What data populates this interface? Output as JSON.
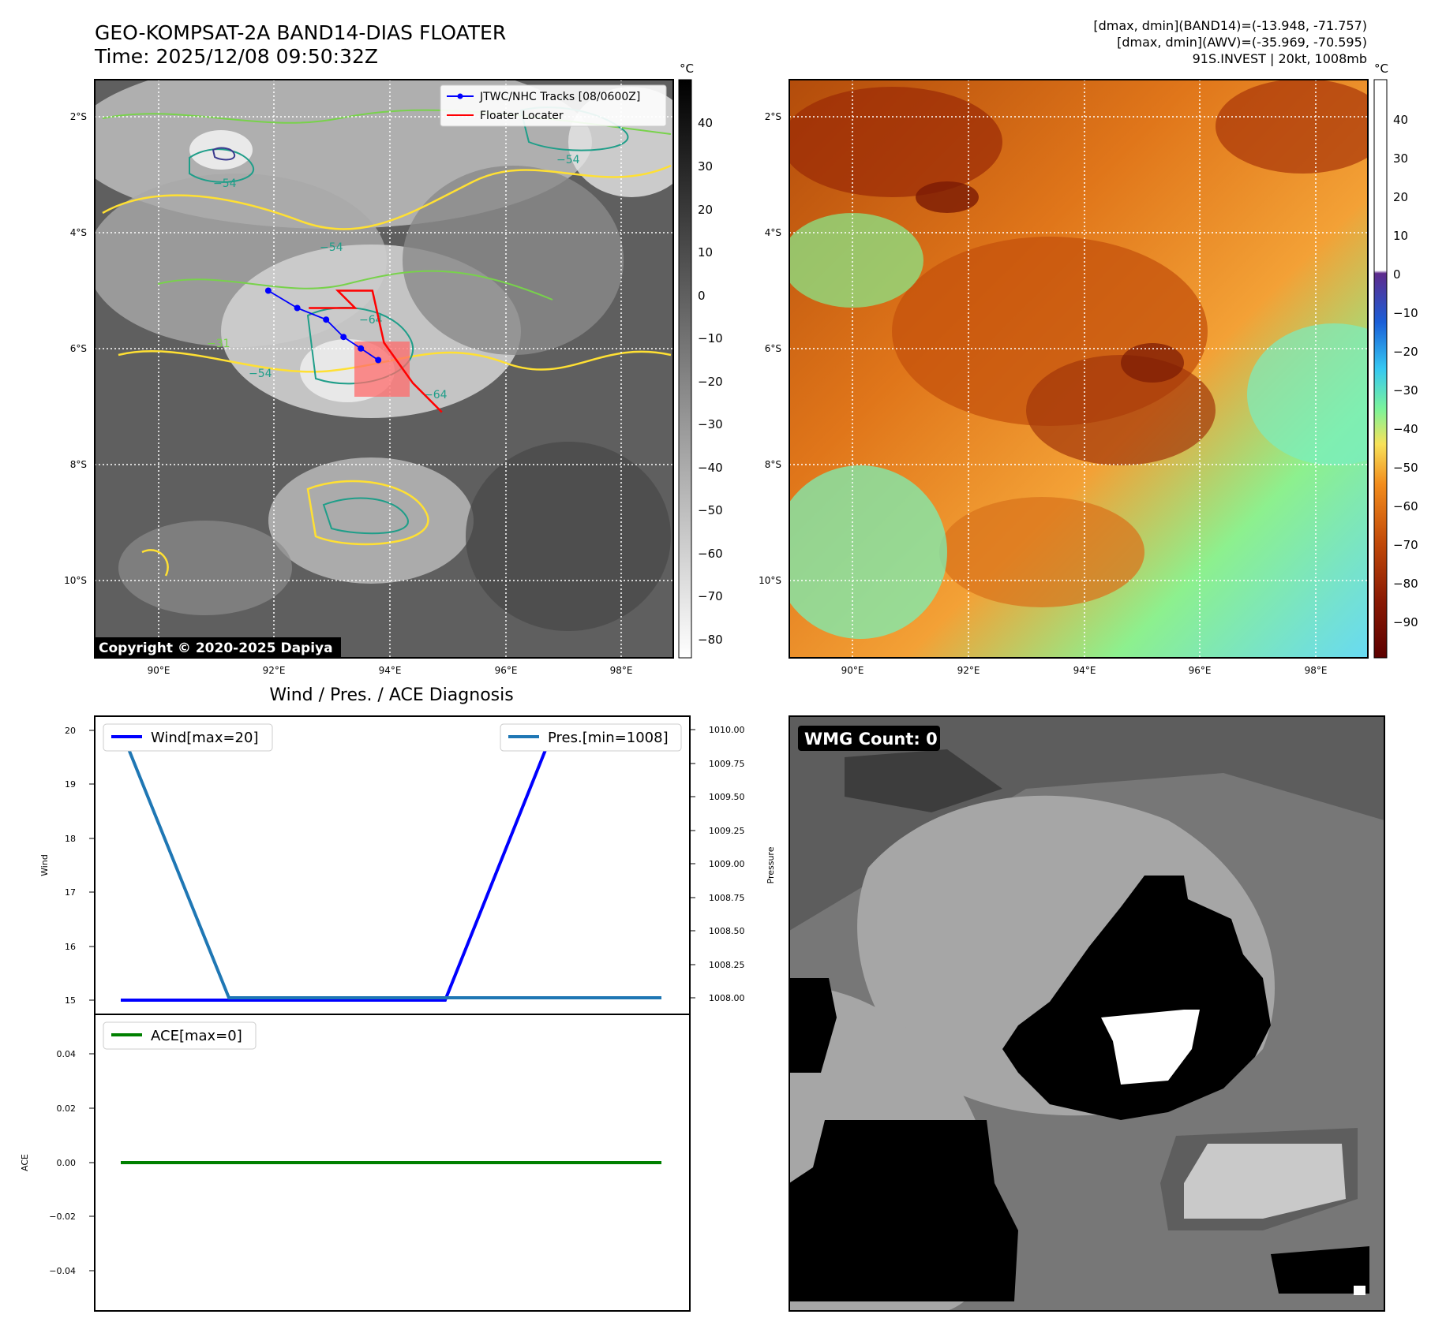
{
  "header": {
    "title_line1": "GEO-KOMPSAT-2A BAND14-DIAS FLOATER",
    "title_line2": "Time: 2025/12/08 09:50:32Z",
    "info_line1": "[dmax, dmin](BAND14)=(-13.948, -71.757)",
    "info_line2": "[dmax, dmin](AWV)=(-35.969, -70.595)",
    "info_line3": "91S.INVEST | 20kt, 1008mb"
  },
  "colors": {
    "track": "#0000ff",
    "locater": "#ff0000",
    "wind": "#0000ff",
    "pressure": "#1f77b4",
    "ace": "#008000",
    "contour_yellow": "#ffe033",
    "contour_green": "#78d24b",
    "contour_teal": "#1f9e89",
    "contour_navy": "#3b3b8f"
  },
  "map_axes": {
    "lat_labels": [
      "2°S",
      "4°S",
      "6°S",
      "8°S",
      "10°S"
    ],
    "lon_labels": [
      "90°E",
      "92°E",
      "94°E",
      "96°E",
      "98°E"
    ]
  },
  "ir_panel": {
    "colorbar_unit": "°C",
    "colorbar_ticks": [
      "40",
      "30",
      "20",
      "10",
      "0",
      "−10",
      "−20",
      "−30",
      "−40",
      "−50",
      "−60",
      "−70",
      "−80"
    ],
    "legend_track": "JTWC/NHC Tracks [08/0600Z]",
    "legend_locater": "Floater Locater",
    "copyright": "Copyright © 2020-2025 Dapiya",
    "contour_labels": [
      "−54",
      "−54",
      "−64",
      "−54",
      "−31",
      "−64",
      "−54"
    ],
    "track_points": [
      {
        "lon": 91.8,
        "lat": -5.0
      },
      {
        "lon": 92.3,
        "lat": -5.3
      },
      {
        "lon": 92.8,
        "lat": -5.5
      },
      {
        "lon": 93.1,
        "lat": -5.8
      },
      {
        "lon": 93.4,
        "lat": -6.0
      },
      {
        "lon": 93.7,
        "lat": -6.2
      }
    ],
    "locater_points": [
      {
        "lon": 92.5,
        "lat": -5.3
      },
      {
        "lon": 93.3,
        "lat": -5.3
      },
      {
        "lon": 93.0,
        "lat": -5.0
      },
      {
        "lon": 93.6,
        "lat": -5.0
      },
      {
        "lon": 93.8,
        "lat": -5.9
      },
      {
        "lon": 94.3,
        "lat": -6.6
      },
      {
        "lon": 94.8,
        "lat": -7.1
      }
    ]
  },
  "awv_panel": {
    "colorbar_unit": "°C",
    "colorbar_ticks": [
      "40",
      "30",
      "20",
      "10",
      "0",
      "−10",
      "−20",
      "−30",
      "−40",
      "−50",
      "−60",
      "−70",
      "−80",
      "−90"
    ]
  },
  "diagnosis": {
    "title": "Wind / Pres. / ACE Diagnosis",
    "wind_ylabel": "Wind",
    "pressure_ylabel": "Pressure",
    "ace_ylabel": "ACE",
    "wind_legend": "Wind[max=20]",
    "pressure_legend": "Pres.[min=1008]",
    "ace_legend": "ACE[max=0]",
    "wind_ticks": [
      "20",
      "19",
      "18",
      "17",
      "16",
      "15"
    ],
    "pressure_ticks": [
      "1010.00",
      "1009.75",
      "1009.50",
      "1009.25",
      "1009.00",
      "1008.75",
      "1008.50",
      "1008.25",
      "1008.00"
    ],
    "ace_ticks": [
      "0.04",
      "0.02",
      "0.00",
      "−0.02",
      "−0.04"
    ]
  },
  "wmg_panel": {
    "label": "WMG Count: 0"
  },
  "chart_data": [
    {
      "type": "line",
      "title": "Wind / Pres. / ACE Diagnosis",
      "x": [
        0,
        1,
        2,
        3,
        4,
        5
      ],
      "series": [
        {
          "name": "Wind[max=20]",
          "axis": "left",
          "values": [
            15,
            15,
            15,
            15,
            20,
            20
          ]
        },
        {
          "name": "Pres.[min=1008]",
          "axis": "right",
          "values": [
            1010,
            1008,
            1008,
            1008,
            1008,
            1008
          ]
        }
      ],
      "ylabel": "Wind",
      "ylabel_right": "Pressure",
      "ylim": [
        14.9,
        20.2
      ],
      "ylim_right": [
        1007.98,
        1010.08
      ]
    },
    {
      "type": "line",
      "x": [
        0,
        1,
        2,
        3,
        4,
        5
      ],
      "series": [
        {
          "name": "ACE[max=0]",
          "values": [
            0,
            0,
            0,
            0,
            0,
            0
          ]
        }
      ],
      "ylabel": "ACE",
      "ylim": [
        -0.055,
        0.055
      ]
    }
  ]
}
